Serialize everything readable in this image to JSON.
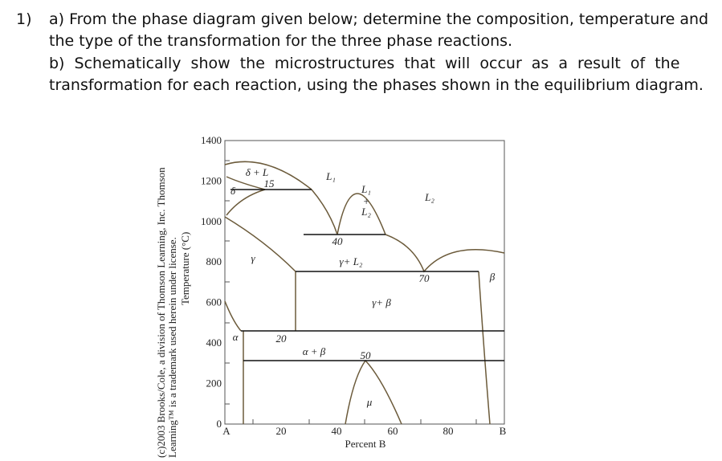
{
  "question": {
    "number": "1)",
    "part_a_line1": "a) From the phase diagram given below; determine the composition, temperature and",
    "part_a_line2": "the type of the transformation for the three phase reactions.",
    "part_b_line1": "b) Schematically show the microstructures that will occur as a result of the",
    "part_b_line2": "transformation for each reaction, using the phases shown in the equilibrium diagram."
  },
  "figure": {
    "credit_line1": "(c)2003 Brooks/Cole, a division of Thomson Learning, Inc. Thomson",
    "credit_line2": "Learning™ is a trademark used herein under license.",
    "y_axis_label": "Temperature (°C)",
    "x_axis_label": "Percent B",
    "y_ticks": [
      "1400",
      "1200",
      "1000",
      "800",
      "600",
      "400",
      "200",
      "0"
    ],
    "x_ticks": [
      "A",
      "20",
      "40",
      "60",
      "80",
      "B"
    ],
    "labels": {
      "delta_L": "δ + L",
      "c15": "15",
      "delta": "δ",
      "L1": "L₁",
      "L1_L2_top": "L₁",
      "plus": "+",
      "L1_L2_bottom": "L₂",
      "L2": "L₂",
      "c40": "40",
      "gamma_L2": "γ+ L₂",
      "gamma": "γ",
      "c70": "70",
      "beta": "β",
      "gamma_beta": "γ+ β",
      "alpha": "α",
      "c20": "20",
      "alpha_beta": "α + β",
      "c50": "50",
      "mu": "μ"
    }
  }
}
